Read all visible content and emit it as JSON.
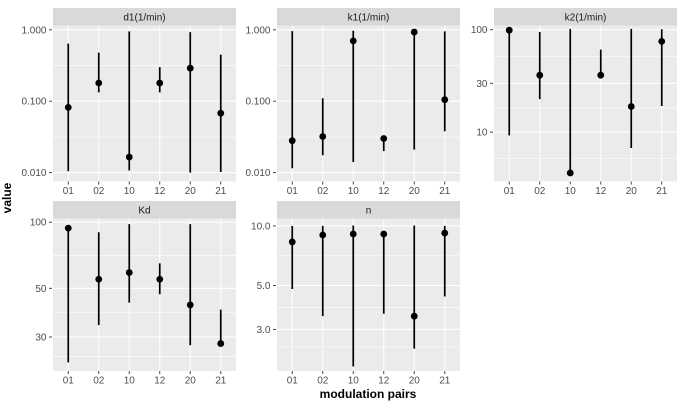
{
  "colors": {
    "panel_bg": "#EBEBEB",
    "strip_bg": "#D9D9D9",
    "grid": "#FFFFFF",
    "point": "#000000",
    "error_bar": "#000000",
    "tick_mark": "#333333",
    "tick_text": "#4D4D4D",
    "strip_text": "#1A1A1A",
    "axis_title": "#000000"
  },
  "chart_data": {
    "type": "scatter",
    "subtype": "point-range-facets",
    "scale": "log10",
    "grid": true,
    "legend": false,
    "xlabel": "modulation pairs",
    "ylabel": "value",
    "categories": [
      "01",
      "02",
      "10",
      "12",
      "20",
      "21"
    ],
    "facets": [
      {
        "title": "d1(1/min)",
        "row": 0,
        "col": 0,
        "ylim": [
          0.0075,
          1.15
        ],
        "yticks": [
          {
            "v": 1.0,
            "label": "1.000"
          },
          {
            "v": 0.1,
            "label": "0.100"
          },
          {
            "v": 0.01,
            "label": "0.010"
          }
        ],
        "yminor": [
          0.316,
          0.0316
        ],
        "points": [
          {
            "x": "01",
            "y": 0.082,
            "lo": 0.0105,
            "hi": 0.64
          },
          {
            "x": "02",
            "y": 0.18,
            "lo": 0.133,
            "hi": 0.48
          },
          {
            "x": "10",
            "y": 0.0165,
            "lo": 0.0107,
            "hi": 0.95
          },
          {
            "x": "12",
            "y": 0.18,
            "lo": 0.133,
            "hi": 0.3
          },
          {
            "x": "20",
            "y": 0.29,
            "lo": 0.01,
            "hi": 0.93
          },
          {
            "x": "21",
            "y": 0.068,
            "lo": 0.0102,
            "hi": 0.45
          }
        ]
      },
      {
        "title": "k1(1/min)",
        "row": 0,
        "col": 1,
        "ylim": [
          0.0075,
          1.15
        ],
        "yticks": [
          {
            "v": 1.0,
            "label": "1.000"
          },
          {
            "v": 0.1,
            "label": "0.100"
          },
          {
            "v": 0.01,
            "label": "0.010"
          }
        ],
        "yminor": [
          0.316,
          0.0316
        ],
        "points": [
          {
            "x": "01",
            "y": 0.028,
            "lo": 0.0115,
            "hi": 0.96
          },
          {
            "x": "02",
            "y": 0.032,
            "lo": 0.0175,
            "hi": 0.11
          },
          {
            "x": "10",
            "y": 0.7,
            "lo": 0.014,
            "hi": 0.97
          },
          {
            "x": "12",
            "y": 0.03,
            "lo": 0.02,
            "hi": 0.03
          },
          {
            "x": "20",
            "y": 0.93,
            "lo": 0.021,
            "hi": 0.97
          },
          {
            "x": "21",
            "y": 0.105,
            "lo": 0.038,
            "hi": 0.95
          }
        ]
      },
      {
        "title": "k2(1/min)",
        "row": 0,
        "col": 2,
        "ylim": [
          3.3,
          110
        ],
        "yticks": [
          {
            "v": 100,
            "label": "100"
          },
          {
            "v": 30,
            "label": "30"
          },
          {
            "v": 10,
            "label": "10"
          }
        ],
        "yminor": [
          54.8,
          17.3,
          5.5
        ],
        "points": [
          {
            "x": "01",
            "y": 99,
            "lo": 9.3,
            "hi": 100
          },
          {
            "x": "02",
            "y": 36,
            "lo": 21,
            "hi": 95
          },
          {
            "x": "10",
            "y": 4.0,
            "lo": 4.0,
            "hi": 102
          },
          {
            "x": "12",
            "y": 36,
            "lo": 36,
            "hi": 64
          },
          {
            "x": "20",
            "y": 17.8,
            "lo": 7.0,
            "hi": 102
          },
          {
            "x": "21",
            "y": 77,
            "lo": 18,
            "hi": 101
          }
        ]
      },
      {
        "title": "Kd",
        "row": 1,
        "col": 0,
        "ylim": [
          21,
          104
        ],
        "yticks": [
          {
            "v": 100,
            "label": "100"
          },
          {
            "v": 50,
            "label": "50"
          },
          {
            "v": 30,
            "label": "30"
          }
        ],
        "yminor": [
          70.7,
          38.7,
          24.5
        ],
        "points": [
          {
            "x": "01",
            "y": 94,
            "lo": 23,
            "hi": 96
          },
          {
            "x": "02",
            "y": 55,
            "lo": 34,
            "hi": 90
          },
          {
            "x": "10",
            "y": 59,
            "lo": 43,
            "hi": 98
          },
          {
            "x": "12",
            "y": 55,
            "lo": 47,
            "hi": 65
          },
          {
            "x": "20",
            "y": 42,
            "lo": 27.5,
            "hi": 98
          },
          {
            "x": "21",
            "y": 28,
            "lo": 28,
            "hi": 40
          }
        ]
      },
      {
        "title": "n",
        "row": 1,
        "col": 1,
        "ylim": [
          1.85,
          10.9
        ],
        "yticks": [
          {
            "v": 10,
            "label": "10.0"
          },
          {
            "v": 5,
            "label": "5.0"
          },
          {
            "v": 3,
            "label": "3.0"
          }
        ],
        "yminor": [
          7.07,
          3.87,
          2.45
        ],
        "points": [
          {
            "x": "01",
            "y": 8.3,
            "lo": 4.8,
            "hi": 10.0
          },
          {
            "x": "02",
            "y": 9.0,
            "lo": 3.5,
            "hi": 10.0
          },
          {
            "x": "10",
            "y": 9.1,
            "lo": 1.95,
            "hi": 10.05
          },
          {
            "x": "12",
            "y": 9.1,
            "lo": 3.6,
            "hi": 9.1
          },
          {
            "x": "20",
            "y": 3.5,
            "lo": 2.4,
            "hi": 10.05
          },
          {
            "x": "21",
            "y": 9.2,
            "lo": 4.4,
            "hi": 10.0
          }
        ]
      }
    ]
  }
}
